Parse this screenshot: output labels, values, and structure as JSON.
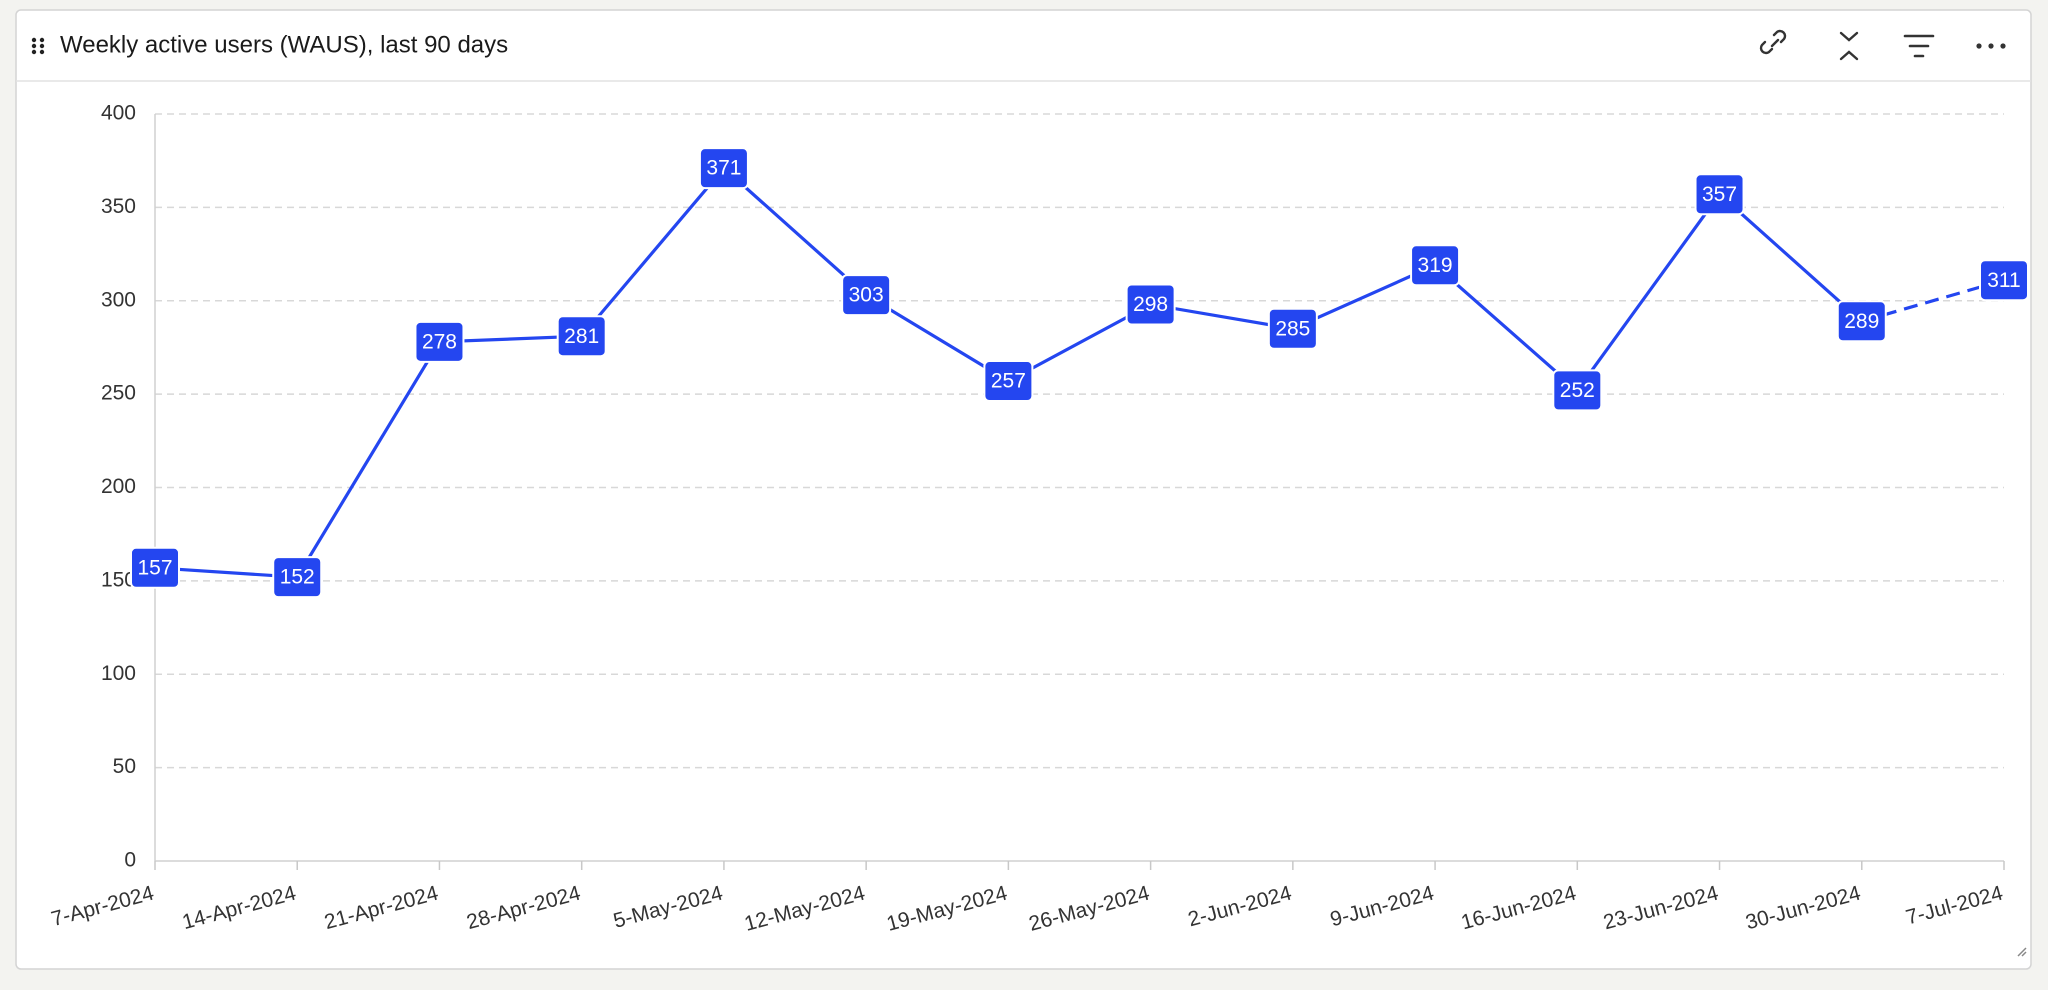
{
  "chart_data": {
    "type": "line",
    "title": "Weekly active users (WAUS), last 90 days",
    "categories": [
      "7-Apr-2024",
      "14-Apr-2024",
      "21-Apr-2024",
      "28-Apr-2024",
      "5-May-2024",
      "12-May-2024",
      "19-May-2024",
      "26-May-2024",
      "2-Jun-2024",
      "9-Jun-2024",
      "16-Jun-2024",
      "23-Jun-2024",
      "30-Jun-2024",
      "7-Jul-2024"
    ],
    "values": [
      157,
      152,
      278,
      281,
      371,
      303,
      257,
      298,
      285,
      319,
      252,
      357,
      289,
      311
    ],
    "color": "#2446f0",
    "dashed_last_segment": true,
    "ylim": [
      0,
      400
    ],
    "yticks": [
      0,
      50,
      100,
      150,
      200,
      250,
      300,
      350,
      400
    ],
    "grid": true
  }
}
